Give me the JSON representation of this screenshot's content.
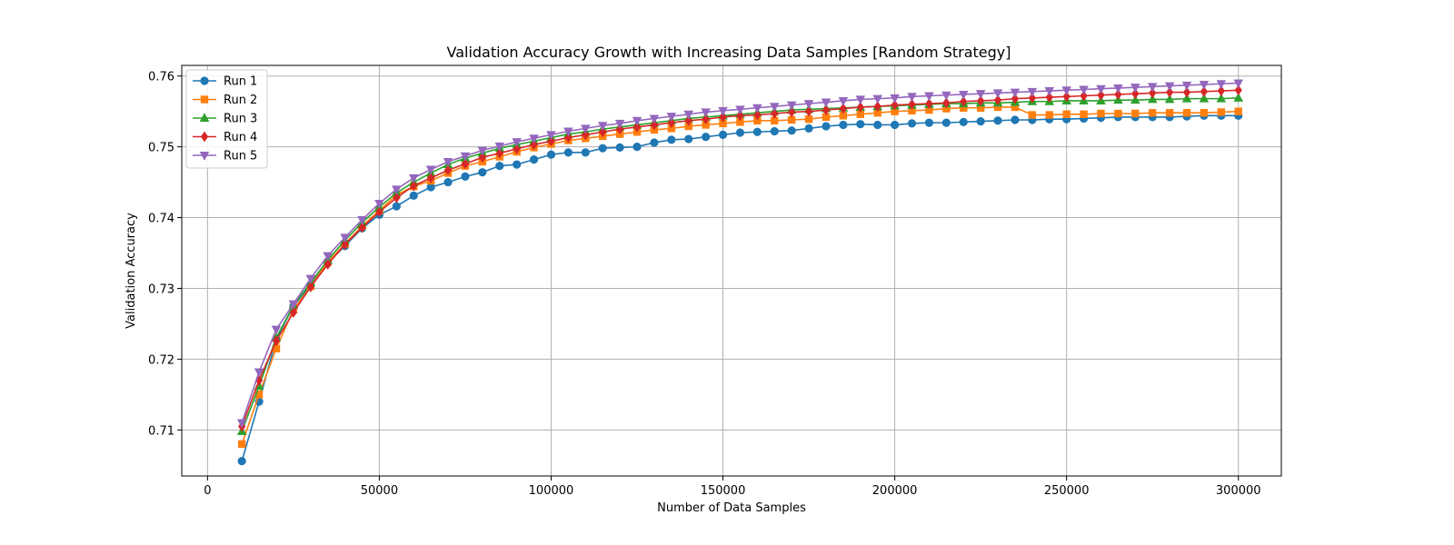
{
  "chart_data": {
    "type": "line",
    "title": "Validation Accuracy Growth with Increasing Data Samples [Random Strategy]",
    "xlabel": "Number of Data Samples",
    "ylabel": "Validation Accuracy",
    "xlim": [
      -7500,
      312500
    ],
    "ylim": [
      0.7035,
      0.7615
    ],
    "xticks": [
      0,
      50000,
      100000,
      150000,
      200000,
      250000,
      300000
    ],
    "xtick_labels": [
      "0",
      "50000",
      "100000",
      "150000",
      "200000",
      "250000",
      "300000"
    ],
    "yticks": [
      0.71,
      0.72,
      0.73,
      0.74,
      0.75,
      0.76
    ],
    "ytick_labels": [
      "0.71",
      "0.72",
      "0.73",
      "0.74",
      "0.75",
      "0.76"
    ],
    "grid": true,
    "legend_position": "top-left",
    "x_start": 10000,
    "x_step": 5000,
    "series": [
      {
        "name": "Run 1",
        "color": "#1f77b4",
        "marker": "circle",
        "values": [
          0.7056,
          0.714,
          0.7228,
          0.7275,
          0.7305,
          0.7336,
          0.736,
          0.7385,
          0.7404,
          0.7416,
          0.7431,
          0.7443,
          0.745,
          0.7458,
          0.7464,
          0.7473,
          0.7475,
          0.7482,
          0.7489,
          0.7492,
          0.7492,
          0.7498,
          0.7499,
          0.75,
          0.7506,
          0.751,
          0.7511,
          0.7514,
          0.7517,
          0.752,
          0.7521,
          0.7522,
          0.7523,
          0.7526,
          0.7529,
          0.7531,
          0.7532,
          0.7531,
          0.7531,
          0.7533,
          0.7534,
          0.7534,
          0.7535,
          0.7536,
          0.7537,
          0.7538,
          0.7538,
          0.7539,
          0.7539,
          0.754,
          0.7541,
          0.7542,
          0.7542,
          0.7542,
          0.7542,
          0.7543,
          0.7544,
          0.7544,
          0.7544
        ]
      },
      {
        "name": "Run 2",
        "color": "#ff7f0e",
        "marker": "square",
        "values": [
          0.708,
          0.715,
          0.7215,
          0.727,
          0.7303,
          0.7337,
          0.7363,
          0.7388,
          0.741,
          0.7432,
          0.7444,
          0.7452,
          0.7463,
          0.7473,
          0.7479,
          0.7486,
          0.7493,
          0.7499,
          0.7504,
          0.7509,
          0.7512,
          0.7515,
          0.7518,
          0.7521,
          0.7524,
          0.7526,
          0.7529,
          0.7531,
          0.7533,
          0.7535,
          0.7537,
          0.7537,
          0.7538,
          0.7539,
          0.7542,
          0.7544,
          0.7546,
          0.7548,
          0.755,
          0.7551,
          0.7552,
          0.7554,
          0.7555,
          0.7555,
          0.7556,
          0.7556,
          0.7545,
          0.7545,
          0.7546,
          0.7546,
          0.7547,
          0.7547,
          0.7547,
          0.7548,
          0.7548,
          0.7548,
          0.7548,
          0.7549,
          0.755
        ]
      },
      {
        "name": "Run 3",
        "color": "#2ca02c",
        "marker": "triangle-up",
        "values": [
          0.7098,
          0.7162,
          0.723,
          0.7276,
          0.7308,
          0.734,
          0.7368,
          0.7393,
          0.7415,
          0.7435,
          0.745,
          0.7463,
          0.7475,
          0.7484,
          0.7491,
          0.7498,
          0.7503,
          0.7508,
          0.7513,
          0.7518,
          0.7521,
          0.7525,
          0.7528,
          0.7531,
          0.7534,
          0.7537,
          0.754,
          0.7542,
          0.7544,
          0.7546,
          0.7548,
          0.755,
          0.7552,
          0.7553,
          0.7554,
          0.7555,
          0.7556,
          0.7557,
          0.7558,
          0.7559,
          0.756,
          0.7561,
          0.7561,
          0.7562,
          0.7562,
          0.7563,
          0.7564,
          0.7564,
          0.7565,
          0.7565,
          0.7565,
          0.7566,
          0.7566,
          0.7567,
          0.7567,
          0.7568,
          0.7568,
          0.7568,
          0.7569
        ]
      },
      {
        "name": "Run 4",
        "color": "#d62728",
        "marker": "diamond",
        "values": [
          0.7105,
          0.717,
          0.7226,
          0.7266,
          0.7302,
          0.7334,
          0.7362,
          0.7386,
          0.7408,
          0.7428,
          0.7445,
          0.7456,
          0.7467,
          0.7476,
          0.7485,
          0.7491,
          0.7497,
          0.7503,
          0.7508,
          0.7513,
          0.7517,
          0.7521,
          0.7525,
          0.7528,
          0.7531,
          0.7534,
          0.7537,
          0.7539,
          0.7542,
          0.7544,
          0.7545,
          0.7547,
          0.7549,
          0.755,
          0.7552,
          0.7554,
          0.7556,
          0.7557,
          0.7559,
          0.756,
          0.7561,
          0.7562,
          0.7564,
          0.7565,
          0.7566,
          0.7568,
          0.7569,
          0.757,
          0.7571,
          0.7572,
          0.7573,
          0.7574,
          0.7575,
          0.7576,
          0.7577,
          0.7577,
          0.7578,
          0.7579,
          0.758
        ]
      },
      {
        "name": "Run 5",
        "color": "#9467bd",
        "marker": "triangle-down",
        "values": [
          0.711,
          0.7182,
          0.7242,
          0.7278,
          0.7314,
          0.7346,
          0.7372,
          0.7397,
          0.742,
          0.744,
          0.7456,
          0.7468,
          0.7479,
          0.7487,
          0.7495,
          0.7501,
          0.7507,
          0.7512,
          0.7517,
          0.7522,
          0.7526,
          0.753,
          0.7533,
          0.7537,
          0.754,
          0.7543,
          0.7546,
          0.7549,
          0.7551,
          0.7553,
          0.7555,
          0.7557,
          0.7559,
          0.7561,
          0.7563,
          0.7565,
          0.7567,
          0.7568,
          0.7569,
          0.7571,
          0.7572,
          0.7573,
          0.7574,
          0.7575,
          0.7576,
          0.7577,
          0.7578,
          0.7579,
          0.758,
          0.7581,
          0.7582,
          0.7583,
          0.7584,
          0.7585,
          0.7586,
          0.7587,
          0.7588,
          0.7589,
          0.759
        ]
      }
    ]
  }
}
